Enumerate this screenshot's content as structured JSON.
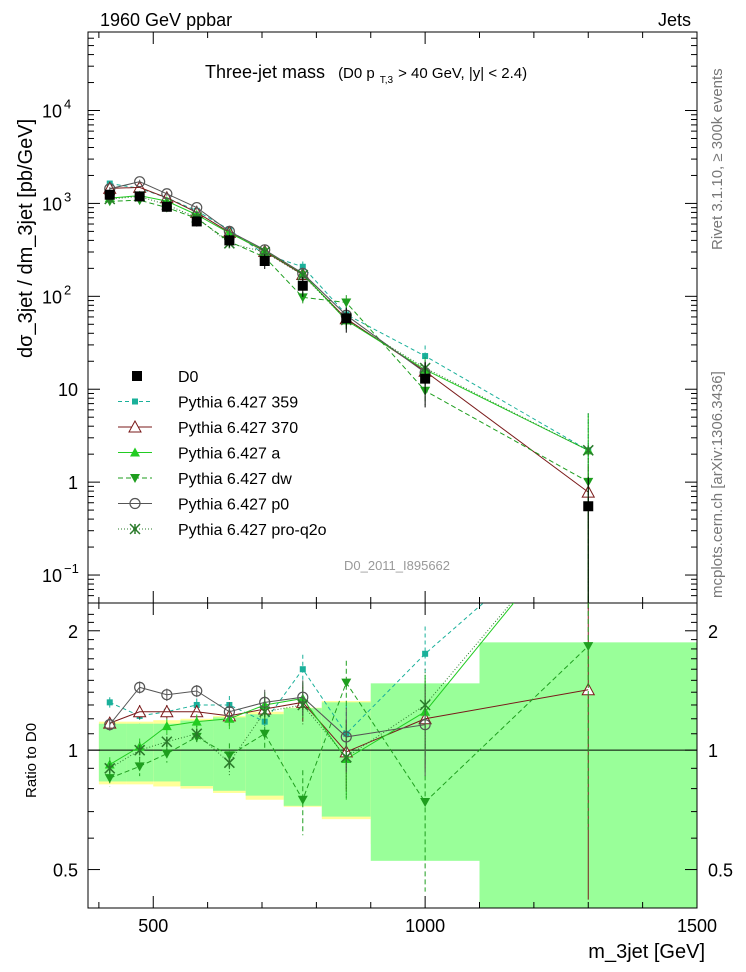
{
  "header": {
    "left": "1960 GeV ppbar",
    "right": "Jets",
    "right_side_top": "Rivet 3.1.10, ≥ 300k events",
    "right_side_bottom": "mcplots.cern.ch [arXiv:1306.3436]"
  },
  "title": {
    "main": "Three-jet mass",
    "paren_open": "(D0 p",
    "sub": "T,3",
    "paren_rest": " > 40 GeV, |y| < 2.4)"
  },
  "watermark": "D0_2011_I895662",
  "axes": {
    "ylabel_top": "dσ_3jet / dm_3jet [pb/GeV]",
    "ylabel_bottom": "Ratio to D0",
    "xlabel": "m_3jet [GeV]",
    "x_ticks": [
      "500",
      "1000",
      "1500"
    ],
    "top_y_ticks": [
      {
        "label": "10",
        "exp": "−1",
        "value": 0.1
      },
      {
        "label": "1",
        "exp": "",
        "value": 1
      },
      {
        "label": "10",
        "exp": "",
        "value": 10
      },
      {
        "label": "10",
        "exp": "2",
        "value": 100
      },
      {
        "label": "10",
        "exp": "3",
        "value": 1000
      },
      {
        "label": "10",
        "exp": "4",
        "value": 10000
      }
    ],
    "ratio_y_ticks": [
      "0.5",
      "1",
      "2"
    ]
  },
  "chart_data": {
    "type": "line",
    "xlim": [
      380,
      1500
    ],
    "ylim_top": [
      0.05,
      70000
    ],
    "ylim_ratio": [
      0.4,
      2.35
    ],
    "y_scale": "log",
    "legend_position": "bottom-left",
    "bins": [
      {
        "x": 420,
        "low": 400,
        "high": 450
      },
      {
        "x": 475,
        "low": 450,
        "high": 500
      },
      {
        "x": 525,
        "low": 500,
        "high": 550
      },
      {
        "x": 580,
        "low": 550,
        "high": 610
      },
      {
        "x": 640,
        "low": 610,
        "high": 670
      },
      {
        "x": 705,
        "low": 670,
        "high": 740
      },
      {
        "x": 775,
        "low": 740,
        "high": 810
      },
      {
        "x": 855,
        "low": 810,
        "high": 900
      },
      {
        "x": 1000,
        "low": 900,
        "high": 1100
      },
      {
        "x": 1300,
        "low": 1100,
        "high": 1500
      }
    ],
    "data": {
      "name": "D0",
      "values": [
        1240,
        1190,
        920,
        640,
        400,
        240,
        130,
        58,
        13,
        0.55
      ],
      "stat_rel": [
        0.03,
        0.03,
        0.03,
        0.04,
        0.05,
        0.06,
        0.08,
        0.1,
        0.17,
        0.35
      ],
      "total_rel": [
        0.18,
        0.18,
        0.19,
        0.2,
        0.22,
        0.25,
        0.28,
        0.33,
        0.42,
        0.65
      ]
    },
    "series": [
      {
        "name": "Pythia 6.427 359",
        "color": "#1ab09a",
        "dash": "4,3",
        "marker": "square",
        "ratio": [
          1.32,
          1.22,
          1.25,
          1.3,
          1.3,
          1.18,
          1.6,
          1.1,
          1.75,
          4.0
        ],
        "err": [
          0.04,
          0.05,
          0.05,
          0.05,
          0.07,
          0.1,
          0.14,
          0.2,
          0.3,
          1.5
        ]
      },
      {
        "name": "Pythia 6.427 370",
        "color": "#7a1a1a",
        "dash": "",
        "marker": "triangle-open",
        "ratio": [
          1.17,
          1.25,
          1.25,
          1.25,
          1.22,
          1.27,
          1.32,
          0.99,
          1.2,
          1.42
        ],
        "err": [
          0.04,
          0.05,
          0.05,
          0.05,
          0.07,
          0.1,
          0.14,
          0.2,
          0.3,
          1.0
        ]
      },
      {
        "name": "Pythia 6.427 a",
        "color": "#22cc22",
        "dash": "",
        "marker": "triangle",
        "ratio": [
          0.92,
          1.02,
          1.15,
          1.18,
          1.2,
          1.3,
          1.35,
          0.95,
          1.25,
          4.0
        ],
        "err": [
          0.04,
          0.05,
          0.05,
          0.05,
          0.07,
          0.1,
          0.14,
          0.2,
          0.3,
          1.5
        ]
      },
      {
        "name": "Pythia 6.427 dw",
        "color": "#1e9e1e",
        "dash": "5,3",
        "marker": "triangle-down",
        "ratio": [
          0.85,
          0.91,
          0.98,
          1.08,
          0.97,
          1.1,
          0.75,
          1.48,
          0.74,
          1.83
        ],
        "err": [
          0.04,
          0.05,
          0.05,
          0.05,
          0.07,
          0.1,
          0.14,
          0.2,
          0.3,
          1.2
        ]
      },
      {
        "name": "Pythia 6.427 p0",
        "color": "#555555",
        "dash": "",
        "marker": "circle-open",
        "ratio": [
          1.16,
          1.44,
          1.38,
          1.41,
          1.25,
          1.32,
          1.36,
          1.08,
          1.16,
          null
        ],
        "err": [
          0.04,
          0.05,
          0.05,
          0.05,
          0.07,
          0.1,
          0.14,
          0.2,
          0.3,
          0
        ]
      },
      {
        "name": "Pythia 6.427 pro-q2o",
        "color": "#2a7a2a",
        "dash": "1,2",
        "marker": "star",
        "ratio": [
          0.9,
          1.0,
          1.05,
          1.1,
          0.93,
          1.25,
          1.3,
          0.96,
          1.3,
          4.0
        ],
        "err": [
          0.04,
          0.05,
          0.05,
          0.05,
          0.07,
          0.1,
          0.14,
          0.2,
          0.3,
          1.5
        ]
      }
    ]
  },
  "colors": {
    "band_stat": "#99ff99",
    "band_total": "#ffff99",
    "data_marker": "#000000",
    "side_text": "#777777",
    "watermark": "#999999"
  }
}
